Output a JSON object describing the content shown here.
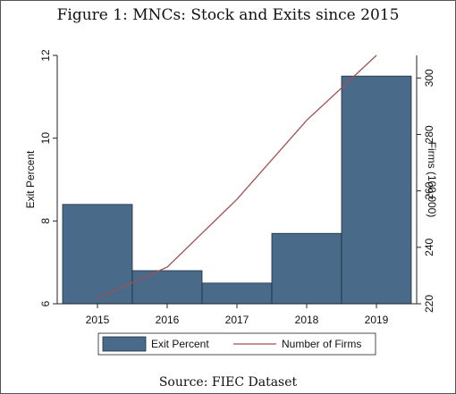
{
  "figure": {
    "title": "Figure 1: MNCs: Stock and Exits since 2015",
    "source": "Source: FIEC Dataset"
  },
  "colors": {
    "bar_fill": "#4a6a8a",
    "bar_stroke": "#1f2f40",
    "line": "#a05050",
    "axis": "#222222",
    "plot_bg": "#ffffff",
    "page_bg": "#ffffff"
  },
  "chart_data": {
    "type": "bar",
    "categories": [
      "2015",
      "2016",
      "2017",
      "2018",
      "2019"
    ],
    "series": [
      {
        "name": "Exit Percent",
        "type": "bar",
        "axis": "left",
        "values": [
          8.4,
          6.8,
          6.5,
          7.7,
          11.5
        ]
      },
      {
        "name": "Number of Firms",
        "type": "line",
        "axis": "right",
        "values": [
          222,
          233,
          257,
          285,
          308
        ]
      }
    ],
    "y_left": {
      "label": "Exit Percent",
      "lim": [
        6,
        12
      ],
      "ticks": [
        6,
        8,
        10,
        12
      ]
    },
    "y_right": {
      "label": "Firms (100,000)",
      "lim": [
        220,
        308
      ],
      "ticks": [
        220,
        240,
        260,
        280,
        300
      ]
    },
    "xlabel": "",
    "grid": false,
    "legend": {
      "position": "bottom",
      "entries": [
        "Exit Percent",
        "Number of Firms"
      ]
    }
  }
}
